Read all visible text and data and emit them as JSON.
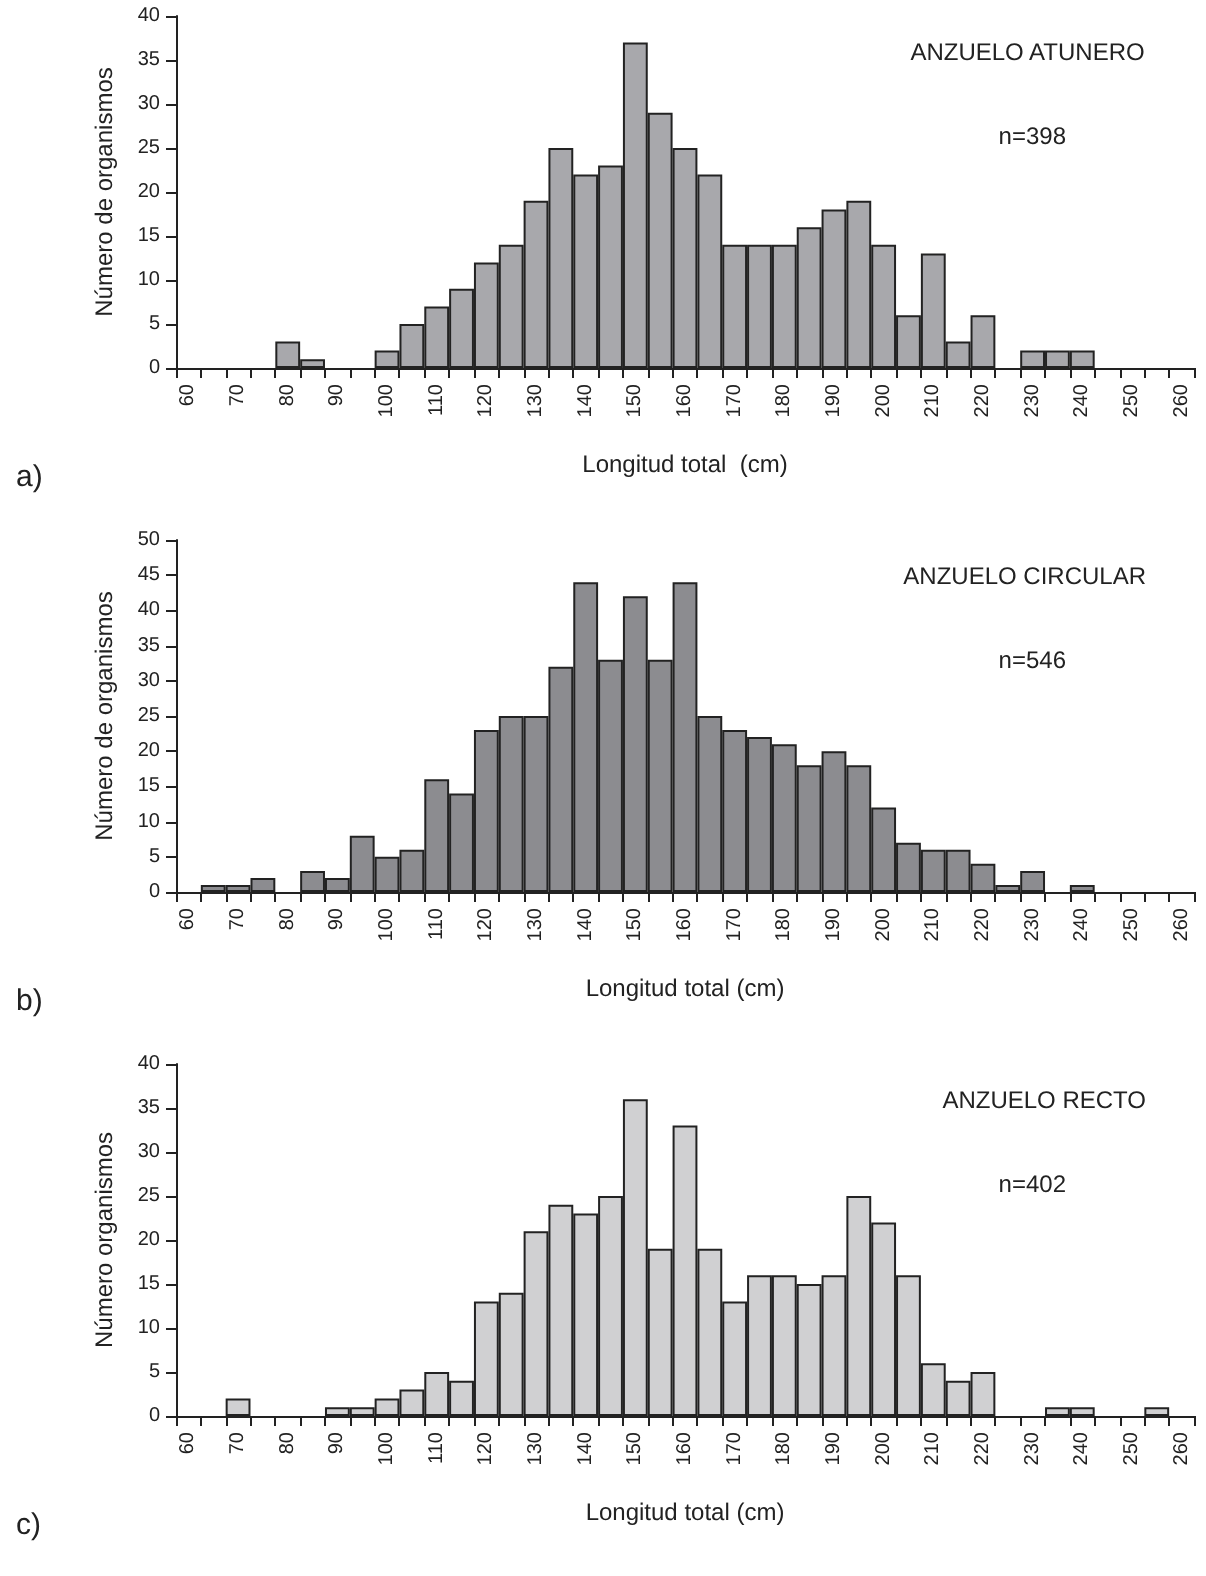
{
  "chart_data": [
    {
      "type": "bar",
      "categories": [
        "60",
        null,
        "70",
        null,
        "80",
        null,
        "90",
        null,
        "100",
        null,
        "110",
        null,
        "120",
        null,
        "130",
        null,
        "140",
        null,
        "150",
        null,
        "160",
        null,
        "170",
        null,
        "180",
        null,
        "190",
        null,
        "200",
        null,
        "210",
        null,
        "220",
        null,
        "230",
        null,
        "240",
        null,
        "250",
        null,
        "260"
      ],
      "values": [
        0,
        0,
        0,
        0,
        3,
        1,
        0,
        0,
        2,
        5,
        7,
        9,
        12,
        14,
        19,
        25,
        22,
        23,
        37,
        29,
        25,
        22,
        14,
        14,
        14,
        16,
        18,
        19,
        14,
        6,
        13,
        3,
        6,
        0,
        2,
        2,
        2,
        0,
        0,
        0,
        0
      ],
      "color": "#a8a8ac",
      "xlabel": "Longitud total  (cm)",
      "ylabel": "Número de organismos",
      "ylim": [
        0,
        40
      ],
      "yticks": [
        0,
        5,
        10,
        15,
        20,
        25,
        30,
        35,
        40
      ],
      "grid": false,
      "annotations": [
        "ANZUELO ATUNERO",
        "n=398",
        "a)"
      ]
    },
    {
      "type": "bar",
      "categories": [
        "60",
        null,
        "70",
        null,
        "80",
        null,
        "90",
        null,
        "100",
        null,
        "110",
        null,
        "120",
        null,
        "130",
        null,
        "140",
        null,
        "150",
        null,
        "160",
        null,
        "170",
        null,
        "180",
        null,
        "190",
        null,
        "200",
        null,
        "210",
        null,
        "220",
        null,
        "230",
        null,
        "240",
        null,
        "250",
        null,
        "260"
      ],
      "values": [
        0,
        1,
        1,
        2,
        0,
        3,
        2,
        8,
        5,
        6,
        16,
        14,
        23,
        25,
        25,
        32,
        44,
        33,
        42,
        33,
        44,
        25,
        23,
        22,
        21,
        18,
        20,
        18,
        12,
        7,
        6,
        6,
        4,
        1,
        3,
        0,
        1,
        0,
        0,
        0,
        0
      ],
      "color": "#8c8c90",
      "xlabel": "Longitud total (cm)",
      "ylabel": "Número de organismos",
      "ylim": [
        0,
        50
      ],
      "yticks": [
        0,
        5,
        10,
        15,
        20,
        25,
        30,
        35,
        40,
        45,
        50
      ],
      "grid": false,
      "annotations": [
        "ANZUELO CIRCULAR",
        "n=546",
        "b)"
      ]
    },
    {
      "type": "bar",
      "categories": [
        "60",
        null,
        "70",
        null,
        "80",
        null,
        "90",
        null,
        "100",
        null,
        "110",
        null,
        "120",
        null,
        "130",
        null,
        "140",
        null,
        "150",
        null,
        "160",
        null,
        "170",
        null,
        "180",
        null,
        "190",
        null,
        "200",
        null,
        "210",
        null,
        "220",
        null,
        "230",
        null,
        "240",
        null,
        "250",
        null,
        "260"
      ],
      "values": [
        0,
        0,
        2,
        0,
        0,
        0,
        1,
        1,
        2,
        3,
        5,
        4,
        13,
        14,
        21,
        24,
        23,
        25,
        36,
        19,
        33,
        19,
        13,
        16,
        16,
        15,
        16,
        25,
        22,
        16,
        6,
        4,
        5,
        0,
        0,
        1,
        1,
        0,
        0,
        1,
        0
      ],
      "color": "#d0d0d2",
      "xlabel": "Longitud total (cm)",
      "ylabel": "Número organismos",
      "ylim": [
        0,
        40
      ],
      "yticks": [
        0,
        5,
        10,
        15,
        20,
        25,
        30,
        35,
        40
      ],
      "grid": false,
      "annotations": [
        "ANZUELO RECTO",
        "n=402",
        "c)"
      ]
    }
  ]
}
